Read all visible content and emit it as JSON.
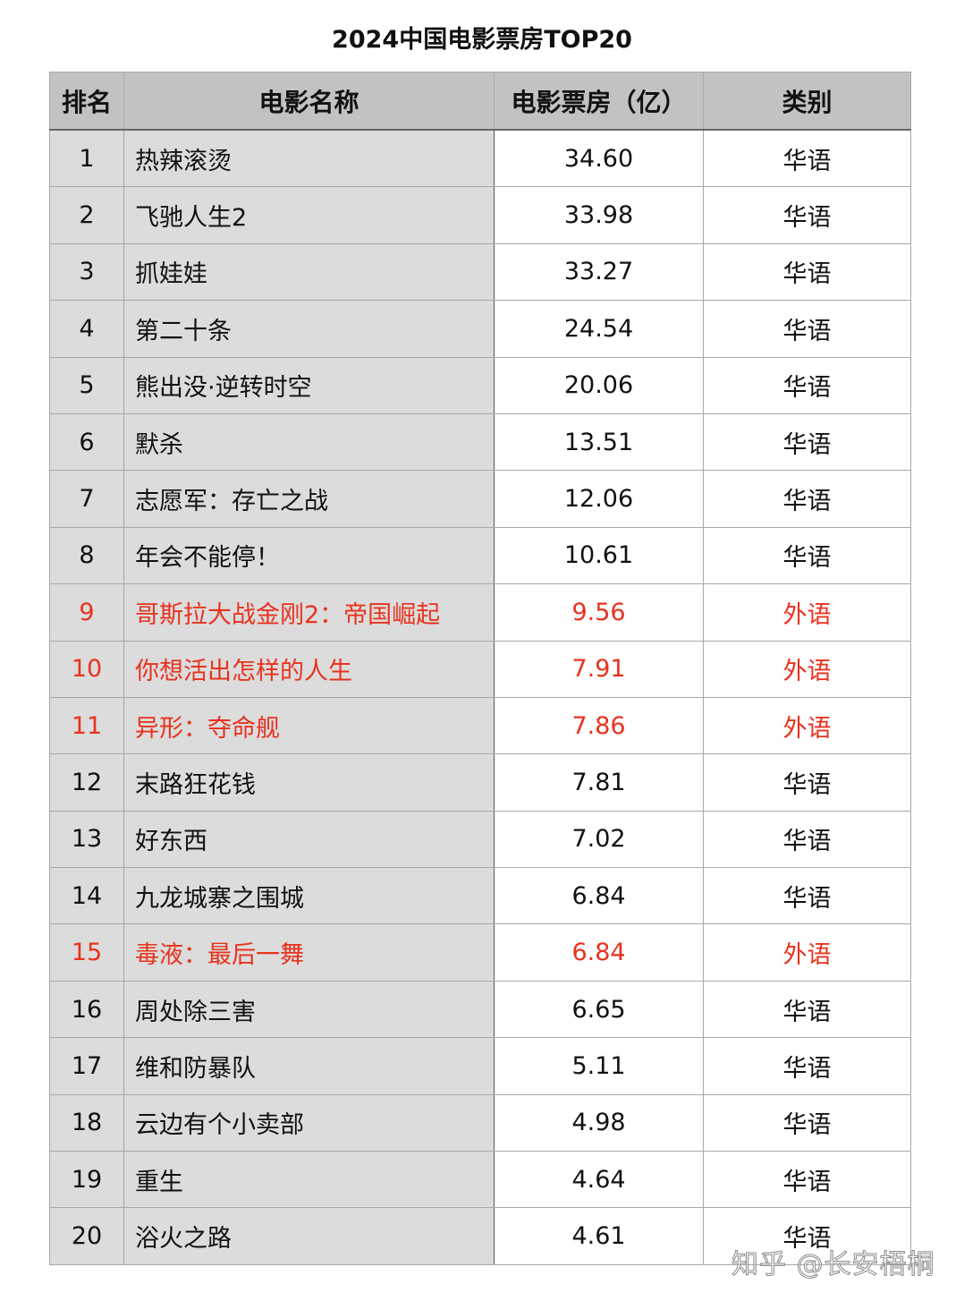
{
  "title": "2024中国电影票房TOP20",
  "watermark": "知乎 @长安梧桐",
  "colors": {
    "header_bg": "#c1c3c2",
    "name_col_bg": "#dcdcdc",
    "foreign_highlight": "#e8321e"
  },
  "chart_data": {
    "type": "table",
    "title": "2024中国电影票房TOP20",
    "columns": [
      "排名",
      "电影名称",
      "电影票房（亿）",
      "类别"
    ],
    "rows": [
      [
        "1",
        "热辣滚烫",
        "34.60",
        "华语"
      ],
      [
        "2",
        "飞驰人生2",
        "33.98",
        "华语"
      ],
      [
        "3",
        "抓娃娃",
        "33.27",
        "华语"
      ],
      [
        "4",
        "第二十条",
        "24.54",
        "华语"
      ],
      [
        "5",
        "熊出没·逆转时空",
        "20.06",
        "华语"
      ],
      [
        "6",
        "默杀",
        "13.51",
        "华语"
      ],
      [
        "7",
        "志愿军：存亡之战",
        "12.06",
        "华语"
      ],
      [
        "8",
        "年会不能停！",
        "10.61",
        "华语"
      ],
      [
        "9",
        "哥斯拉大战金刚2：帝国崛起",
        "9.56",
        "外语"
      ],
      [
        "10",
        "你想活出怎样的人生",
        "7.91",
        "外语"
      ],
      [
        "11",
        "异形：夺命舰",
        "7.86",
        "外语"
      ],
      [
        "12",
        "末路狂花钱",
        "7.81",
        "华语"
      ],
      [
        "13",
        "好东西",
        "7.02",
        "华语"
      ],
      [
        "14",
        "九龙城寨之围城",
        "6.84",
        "华语"
      ],
      [
        "15",
        "毒液：最后一舞",
        "6.84",
        "外语"
      ],
      [
        "16",
        "周处除三害",
        "6.65",
        "华语"
      ],
      [
        "17",
        "维和防暴队",
        "5.11",
        "华语"
      ],
      [
        "18",
        "云边有个小卖部",
        "4.98",
        "华语"
      ],
      [
        "19",
        "重生",
        "4.64",
        "华语"
      ],
      [
        "20",
        "浴火之路",
        "4.61",
        "华语"
      ]
    ]
  }
}
